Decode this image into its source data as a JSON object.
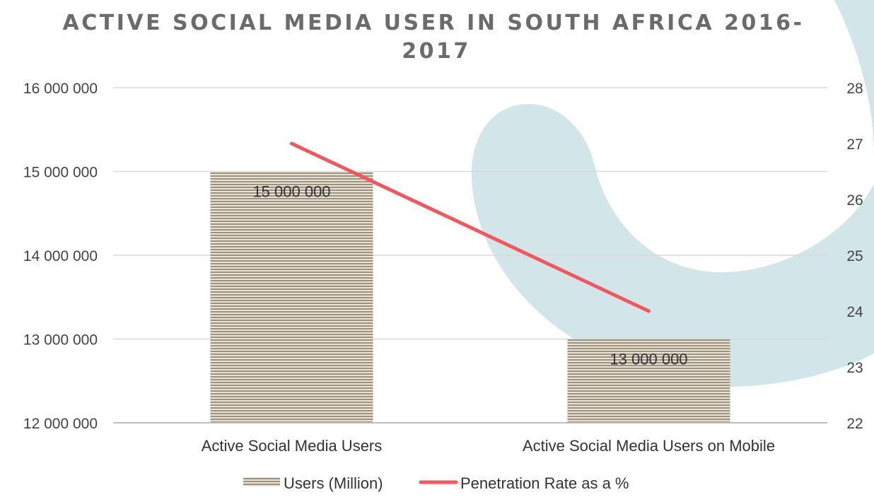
{
  "chart_data": {
    "type": "bar",
    "title": "ACTIVE SOCIAL MEDIA USER IN SOUTH AFRICA 2016-2017",
    "title_lines": [
      "ACTIVE SOCIAL MEDIA USER IN SOUTH AFRICA 2016-",
      "2017"
    ],
    "categories": [
      "Active Social Media Users",
      "Active Social Media Users on Mobile"
    ],
    "series": [
      {
        "name": "Users (Million)",
        "type": "bar",
        "axis": "left",
        "values": [
          15000000,
          13000000
        ],
        "data_labels": [
          "15 000 000",
          "13 000 000"
        ],
        "color": "#a89e8c"
      },
      {
        "name": "Penetration Rate as a %",
        "type": "line",
        "axis": "right",
        "values": [
          27,
          24
        ],
        "color": "#f0575f"
      }
    ],
    "y_left": {
      "ylim": [
        12000000,
        16000000
      ],
      "ticks": [
        12000000,
        13000000,
        14000000,
        15000000,
        16000000
      ],
      "tick_labels": [
        "12 000 000",
        "13 000 000",
        "14 000 000",
        "15 000 000",
        "16 000 000"
      ]
    },
    "y_right": {
      "ylim": [
        22,
        28
      ],
      "ticks": [
        22,
        23,
        24,
        25,
        26,
        27,
        28
      ],
      "tick_labels": [
        "22",
        "23",
        "24",
        "25",
        "26",
        "27",
        "28"
      ]
    },
    "grid": true,
    "legend_position": "bottom",
    "background_decoration_color": "#d2e6e9",
    "gridline_color": "#d9d9d9"
  }
}
